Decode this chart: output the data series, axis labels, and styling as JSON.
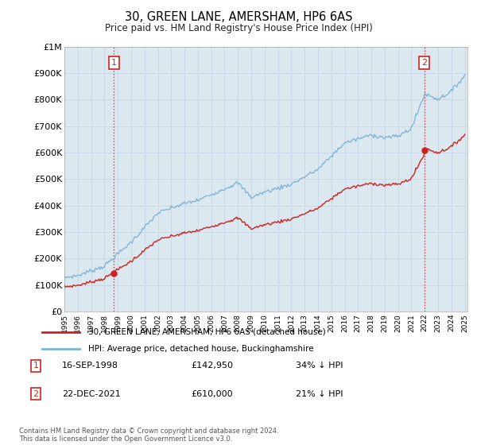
{
  "title": "30, GREEN LANE, AMERSHAM, HP6 6AS",
  "subtitle": "Price paid vs. HM Land Registry's House Price Index (HPI)",
  "ylim": [
    0,
    1000000
  ],
  "yticks": [
    0,
    100000,
    200000,
    300000,
    400000,
    500000,
    600000,
    700000,
    800000,
    900000,
    1000000
  ],
  "ytick_labels": [
    "£0",
    "£100K",
    "£200K",
    "£300K",
    "£400K",
    "£500K",
    "£600K",
    "£700K",
    "£800K",
    "£900K",
    "£1M"
  ],
  "hpi_color": "#7ab3d4",
  "price_color": "#cc2222",
  "grid_color": "#c8d8e8",
  "plot_bg_color": "#dce8f0",
  "background_color": "#ffffff",
  "sale1_year": 1998.708,
  "sale1_price": 142950,
  "sale2_year": 2021.958,
  "sale2_price": 610000,
  "legend1": "30, GREEN LANE, AMERSHAM, HP6 6AS (detached house)",
  "legend2": "HPI: Average price, detached house, Buckinghamshire",
  "sale1_date": "16-SEP-1998",
  "sale1_price_str": "£142,950",
  "sale1_pct": "34% ↓ HPI",
  "sale2_date": "22-DEC-2021",
  "sale2_price_str": "£610,000",
  "sale2_pct": "21% ↓ HPI",
  "footer": "Contains HM Land Registry data © Crown copyright and database right 2024.\nThis data is licensed under the Open Government Licence v3.0.",
  "xstart": 1995,
  "xend": 2025
}
